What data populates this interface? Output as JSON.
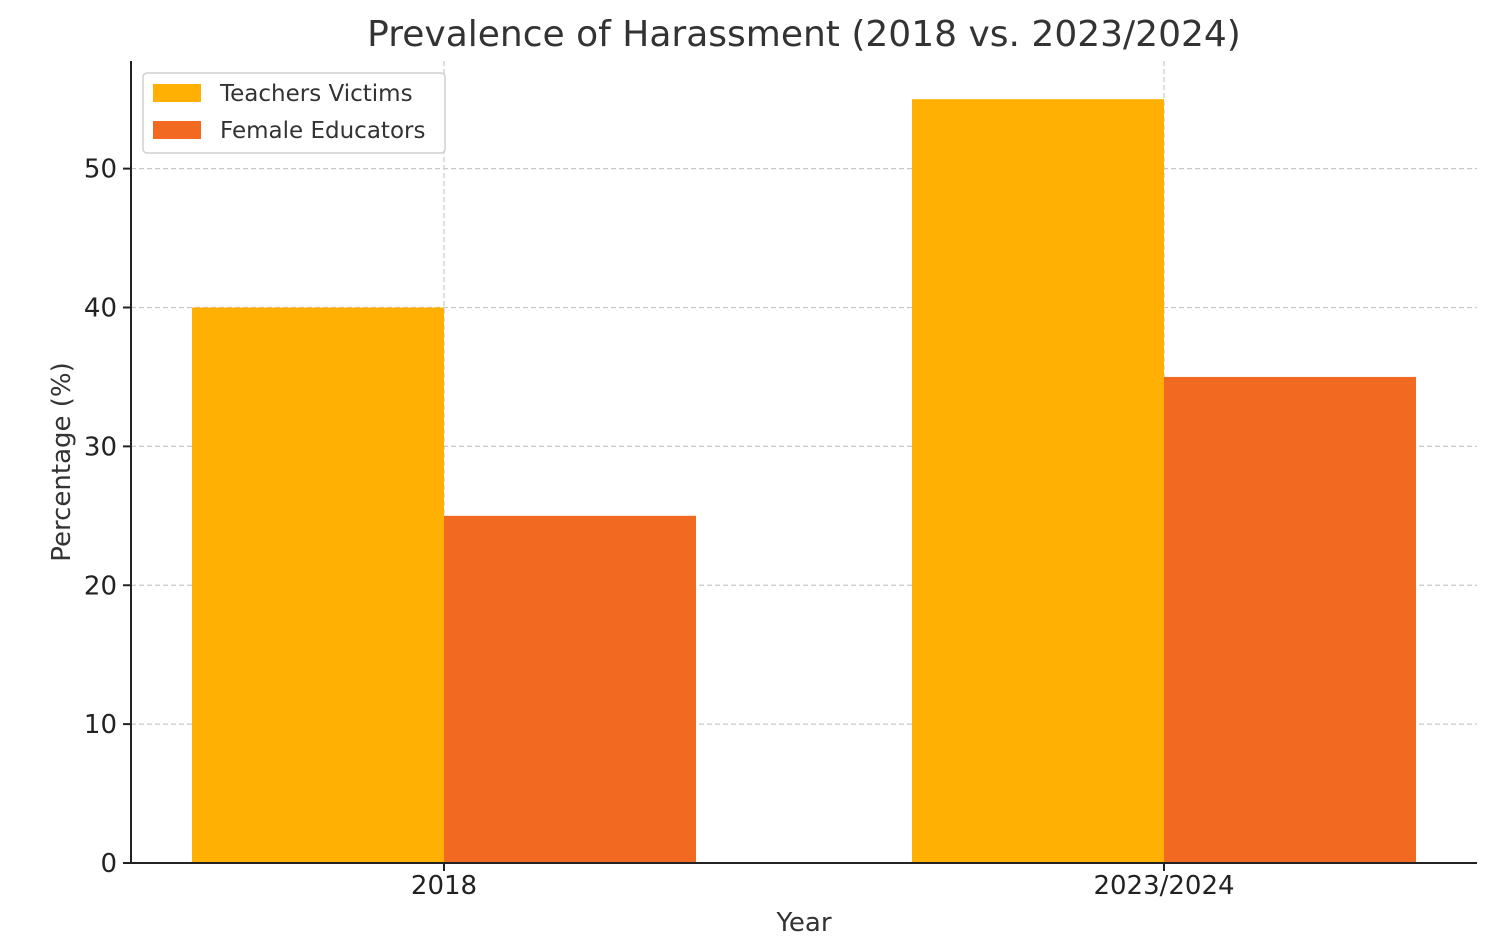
{
  "chart_data": {
    "type": "bar",
    "title": "Prevalence of Harassment (2018 vs. 2023/2024)",
    "xlabel": "Year",
    "ylabel": "Percentage (%)",
    "categories": [
      "2018",
      "2023/2024"
    ],
    "series": [
      {
        "name": "Teachers Victims",
        "values": [
          40,
          55
        ],
        "color": "#FFB003"
      },
      {
        "name": "Female Educators",
        "values": [
          25,
          35
        ],
        "color": "#F26A22"
      }
    ],
    "ylim": [
      0,
      57.75
    ],
    "yticks": [
      0,
      10,
      20,
      30,
      40,
      50
    ],
    "grid": true,
    "legend_position": "top-left"
  }
}
